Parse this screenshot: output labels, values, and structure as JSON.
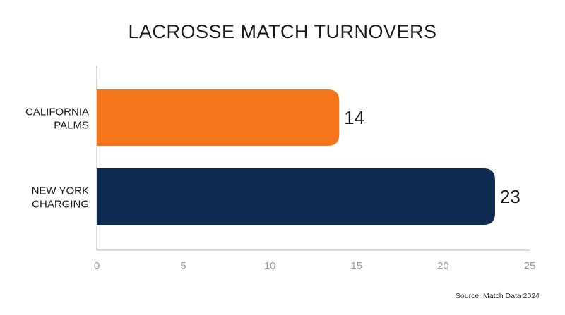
{
  "chart_data": {
    "type": "bar",
    "orientation": "horizontal",
    "title": "LACROSSE MATCH TURNOVERS",
    "categories": [
      [
        "CALIFORNIA",
        "PALMS"
      ],
      [
        "NEW YORK",
        "CHARGING"
      ]
    ],
    "values": [
      14,
      23
    ],
    "xlim": [
      0,
      25
    ],
    "x_ticks": [
      "0",
      "5",
      "10",
      "15",
      "20",
      "25"
    ],
    "data_labels": [
      "14",
      "23"
    ],
    "bar_colors": [
      "#f5761a",
      "#0e2a50"
    ],
    "grid": false,
    "legend": "none"
  },
  "source": "Source: Match Data 2024"
}
